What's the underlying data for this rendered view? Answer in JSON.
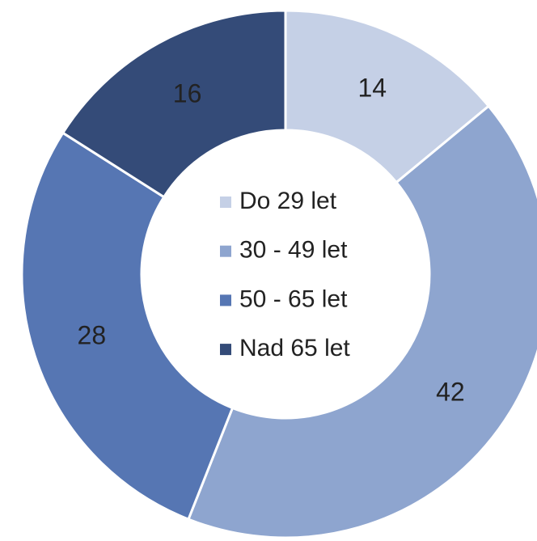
{
  "chart_data": {
    "type": "donut",
    "categories": [
      "Do 29 let",
      "30 - 49 let",
      "50 - 65 let",
      "Nad 65 let"
    ],
    "values": [
      14,
      42,
      28,
      16
    ],
    "colors": [
      "#c5d0e6",
      "#8ea5cf",
      "#5676b3",
      "#344b78"
    ],
    "legend": "center"
  }
}
